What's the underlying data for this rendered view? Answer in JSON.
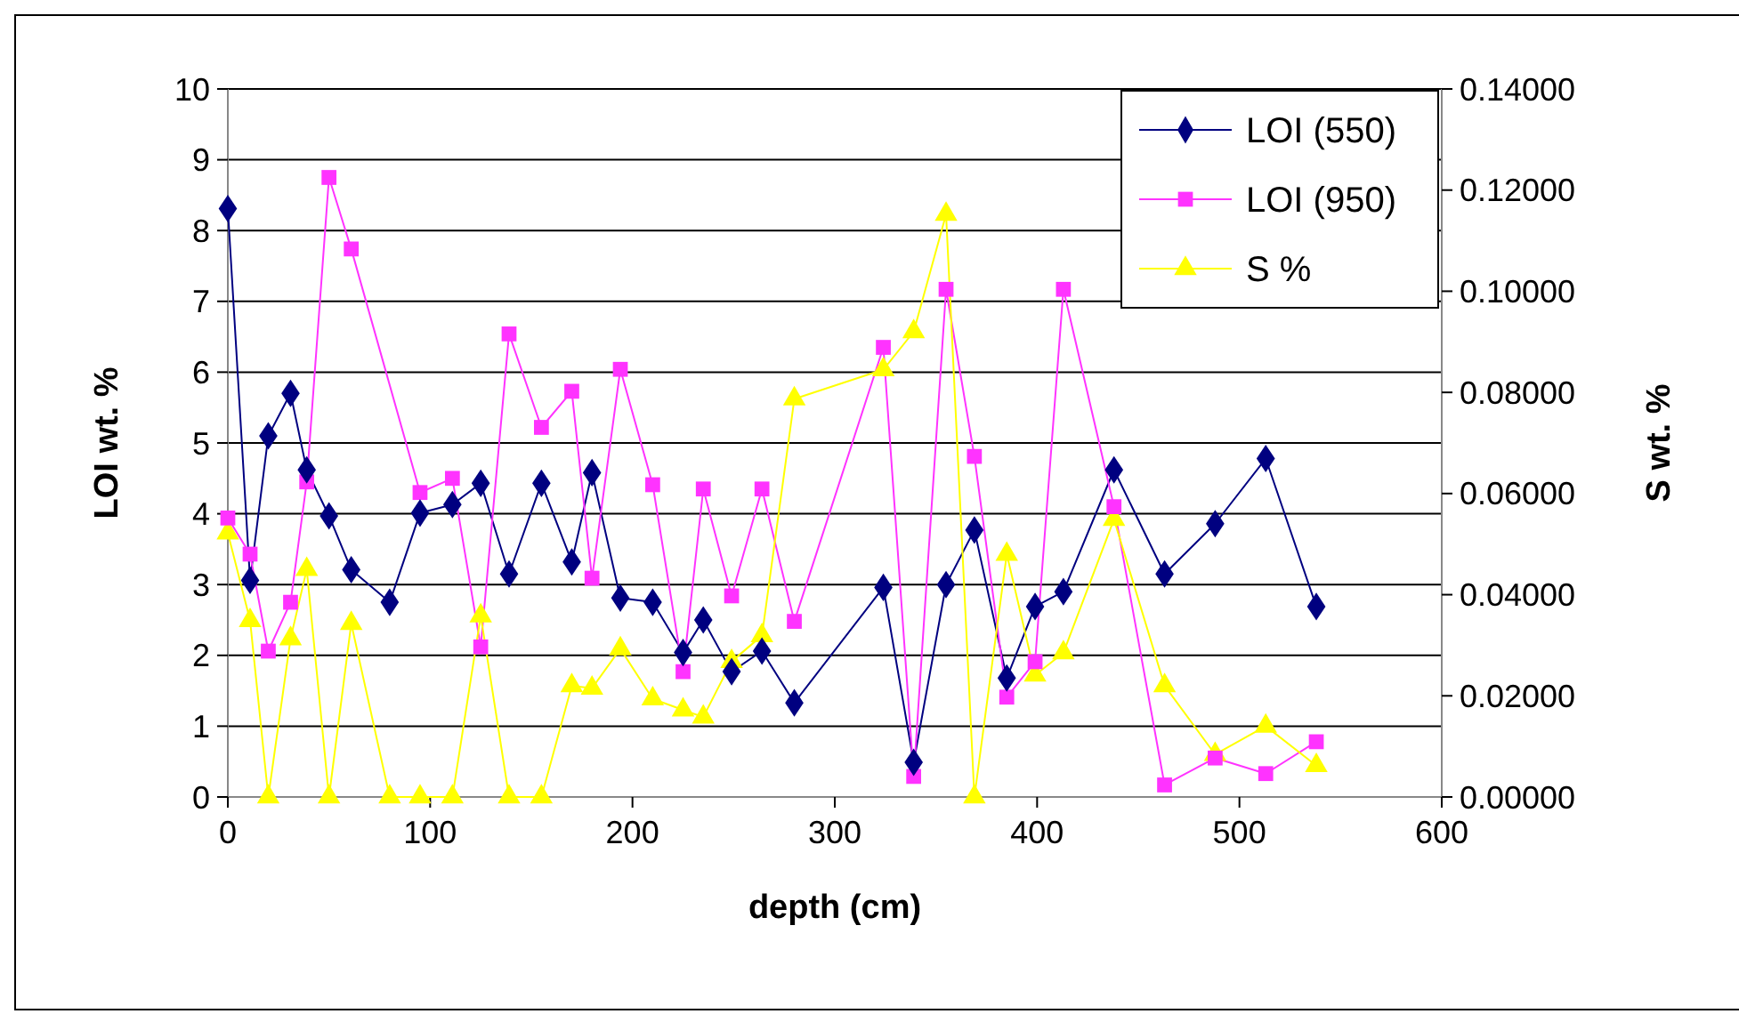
{
  "chart_data": {
    "type": "line",
    "xlabel": "depth (cm)",
    "ylabel": "LOI wt. %",
    "y2label": "S wt. %",
    "x": [
      0,
      11,
      20,
      31,
      39,
      50,
      61,
      80,
      95,
      111,
      125,
      139,
      155,
      170,
      180,
      194,
      210,
      225,
      235,
      249,
      264,
      280,
      324,
      339,
      355,
      369,
      385,
      399,
      413,
      438,
      463,
      488,
      513,
      538
    ],
    "xlim": [
      0,
      600
    ],
    "xticks": [
      0,
      100,
      200,
      300,
      400,
      500,
      600
    ],
    "ylim": [
      0,
      10
    ],
    "yticks": [
      0,
      1,
      2,
      3,
      4,
      5,
      6,
      7,
      8,
      9,
      10
    ],
    "y2lim": [
      0,
      0.14
    ],
    "y2ticks": [
      {
        "value": 0,
        "label": "0.00000"
      },
      {
        "value": 0.02,
        "label": "0.02000"
      },
      {
        "value": 0.04,
        "label": "0.04000"
      },
      {
        "value": 0.06,
        "label": "0.06000"
      },
      {
        "value": 0.08,
        "label": "0.08000"
      },
      {
        "value": 0.1,
        "label": "0.10000"
      },
      {
        "value": 0.12,
        "label": "0.12000"
      },
      {
        "value": 0.14,
        "label": "0.14000"
      }
    ],
    "grid": "y",
    "legend": "top right",
    "series": [
      {
        "name": "LOI (550)",
        "color": "#000080",
        "marker": "diamond",
        "values": [
          8.31,
          3.06,
          5.1,
          5.7,
          4.62,
          3.97,
          3.21,
          2.75,
          4.01,
          4.13,
          4.43,
          3.15,
          4.43,
          3.32,
          4.58,
          2.81,
          2.75,
          2.04,
          2.5,
          1.77,
          2.06,
          1.33,
          2.96,
          0.49,
          3.0,
          3.77,
          1.68,
          2.69,
          2.9,
          4.62,
          3.15,
          3.86,
          4.78,
          2.69
        ]
      },
      {
        "name": "LOI (950)",
        "color": "#ff33ff",
        "marker": "square",
        "x": [
          0,
          11,
          20,
          31,
          39,
          50,
          61,
          95,
          111,
          125,
          139,
          155,
          170,
          180,
          194,
          210,
          225,
          235,
          249,
          264,
          280,
          324,
          339,
          355,
          369,
          385,
          399,
          413,
          438,
          463,
          488,
          513,
          538
        ],
        "values": [
          3.94,
          3.43,
          2.06,
          2.75,
          4.45,
          8.75,
          7.74,
          4.3,
          4.5,
          2.12,
          6.54,
          5.22,
          5.73,
          3.09,
          6.04,
          4.41,
          1.77,
          4.35,
          2.84,
          4.35,
          2.48,
          6.35,
          0.29,
          7.17,
          4.81,
          1.41,
          1.91,
          7.17,
          4.1,
          0.17,
          0.55,
          0.33,
          0.78
        ]
      },
      {
        "name": "S %",
        "color": "#ffff00",
        "marker": "triangle",
        "axis": "y2",
        "values": [
          0.0522,
          0.0349,
          0,
          0.0313,
          0.045,
          0,
          0.0343,
          0,
          0,
          0,
          0.0358,
          0,
          0,
          0.022,
          0.0215,
          0.0293,
          0.0194,
          0.0172,
          0.0158,
          0.0268,
          0.0319,
          0.0787,
          0.0845,
          0.092,
          0.1152,
          0,
          0.048,
          0.0241,
          0.0285,
          0.0549,
          0.022,
          0.0084,
          0.014,
          0.0062
        ]
      }
    ]
  }
}
